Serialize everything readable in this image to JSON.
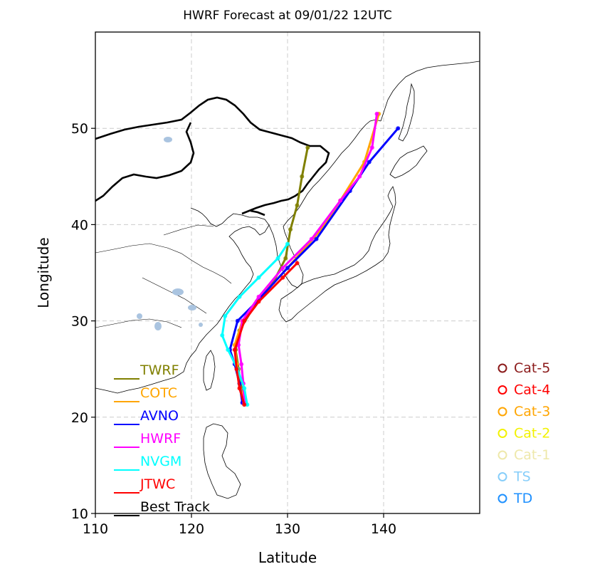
{
  "chart_data": {
    "type": "line",
    "title": "HWRF Forecast at 09/01/22 12UTC",
    "xlabel": "Latitude",
    "ylabel": "Longitude",
    "xlim": [
      110,
      150
    ],
    "ylim": [
      10,
      60
    ],
    "xticks": [
      110,
      120,
      130,
      140
    ],
    "yticks": [
      10,
      20,
      30,
      40,
      50
    ],
    "grid": true,
    "legend_position": "lower-left",
    "series": [
      {
        "name": "TWRF",
        "color": "#808000",
        "points": [
          [
            125.5,
            21.5
          ],
          [
            125.2,
            23.0
          ],
          [
            124.9,
            25.0
          ],
          [
            124.6,
            27.0
          ],
          [
            125.0,
            29.0
          ],
          [
            126.5,
            31.5
          ],
          [
            128.5,
            34.0
          ],
          [
            129.8,
            36.5
          ],
          [
            130.3,
            39.5
          ],
          [
            131.0,
            42.0
          ],
          [
            131.5,
            45.0
          ],
          [
            132.1,
            48.0
          ]
        ]
      },
      {
        "name": "COTC",
        "color": "#ffa500",
        "points": [
          [
            125.5,
            21.5
          ],
          [
            125.0,
            23.5
          ],
          [
            124.7,
            25.5
          ],
          [
            124.5,
            27.5
          ],
          [
            125.3,
            30.0
          ],
          [
            127.2,
            32.5
          ],
          [
            130.0,
            35.5
          ],
          [
            133.5,
            39.5
          ],
          [
            135.5,
            42.5
          ],
          [
            138.0,
            46.5
          ],
          [
            139.5,
            51.5
          ]
        ]
      },
      {
        "name": "AVNO",
        "color": "#0000ff",
        "points": [
          [
            125.3,
            21.5
          ],
          [
            125.0,
            23.5
          ],
          [
            124.5,
            25.5
          ],
          [
            124.0,
            27.0
          ],
          [
            124.8,
            30.0
          ],
          [
            126.8,
            32.0
          ],
          [
            130.0,
            35.5
          ],
          [
            133.0,
            38.5
          ],
          [
            136.5,
            43.5
          ],
          [
            138.5,
            46.5
          ],
          [
            141.5,
            50.0
          ]
        ]
      },
      {
        "name": "HWRF",
        "color": "#ff00ff",
        "points": [
          [
            125.5,
            21.5
          ],
          [
            125.4,
            23.5
          ],
          [
            125.2,
            25.5
          ],
          [
            124.9,
            27.5
          ],
          [
            125.3,
            30.0
          ],
          [
            127.0,
            32.5
          ],
          [
            129.5,
            35.5
          ],
          [
            132.5,
            38.5
          ],
          [
            135.5,
            42.5
          ],
          [
            137.5,
            45.0
          ],
          [
            138.8,
            48.0
          ],
          [
            139.3,
            51.5
          ]
        ]
      },
      {
        "name": "NVGM",
        "color": "#00ffff",
        "points": [
          [
            125.8,
            21.3
          ],
          [
            125.5,
            23.0
          ],
          [
            124.8,
            25.0
          ],
          [
            123.8,
            27.0
          ],
          [
            123.2,
            28.5
          ],
          [
            123.5,
            30.5
          ],
          [
            125.0,
            32.5
          ],
          [
            127.0,
            34.5
          ],
          [
            129.0,
            36.5
          ],
          [
            130.0,
            38.0
          ]
        ]
      },
      {
        "name": "JTWC",
        "color": "#ff0000",
        "points": [
          [
            125.5,
            21.3
          ],
          [
            125.0,
            23.0
          ],
          [
            124.7,
            25.0
          ],
          [
            124.5,
            27.0
          ],
          [
            125.5,
            30.0
          ],
          [
            127.0,
            32.0
          ],
          [
            129.5,
            34.5
          ],
          [
            131.0,
            36.0
          ]
        ]
      },
      {
        "name": "Best Track",
        "color": "#000000",
        "points": []
      }
    ],
    "intensity_legend": [
      {
        "label": "Cat-5",
        "color": "#8b1a1a"
      },
      {
        "label": "Cat-4",
        "color": "#ff0000"
      },
      {
        "label": "Cat-3",
        "color": "#ffa500"
      },
      {
        "label": "Cat-2",
        "color": "#f2f200"
      },
      {
        "label": "Cat-1",
        "color": "#eee8aa"
      },
      {
        "label": "TS",
        "color": "#87cefa"
      },
      {
        "label": "TD",
        "color": "#1e90ff"
      }
    ],
    "marker_color": "#aac4e0"
  }
}
